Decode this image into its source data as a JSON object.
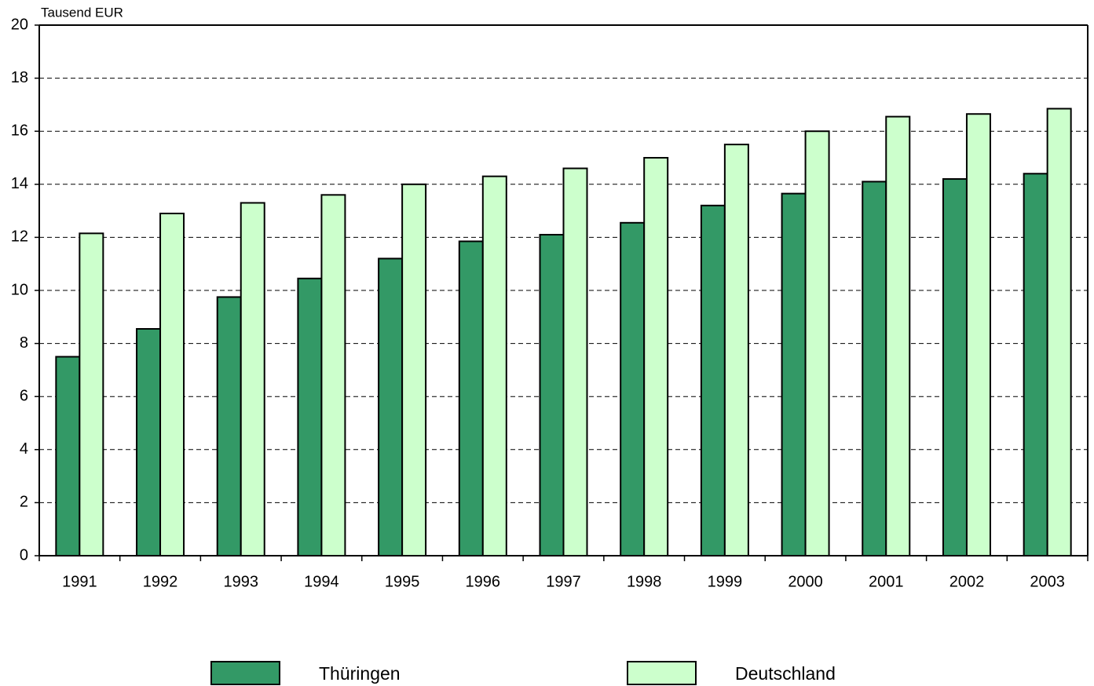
{
  "chart_data": {
    "type": "bar",
    "unit_label": "Tausend EUR",
    "categories": [
      "1991",
      "1992",
      "1993",
      "1994",
      "1995",
      "1996",
      "1997",
      "1998",
      "1999",
      "2000",
      "2001",
      "2002",
      "2003"
    ],
    "series": [
      {
        "name": "Thüringen",
        "color": "#339966",
        "values": [
          7.5,
          8.55,
          9.75,
          10.45,
          11.2,
          11.85,
          12.1,
          12.55,
          13.2,
          13.65,
          14.1,
          14.2,
          14.4
        ]
      },
      {
        "name": "Deutschland",
        "color": "#ccffcc",
        "values": [
          12.15,
          12.9,
          13.3,
          13.6,
          14.0,
          14.3,
          14.6,
          15.0,
          15.5,
          16.0,
          16.55,
          16.65,
          16.85
        ]
      }
    ],
    "ylim": [
      0,
      20
    ],
    "yticks": [
      0,
      2,
      4,
      6,
      8,
      10,
      12,
      14,
      16,
      18,
      20
    ],
    "grid": true,
    "legend": "bottom"
  }
}
